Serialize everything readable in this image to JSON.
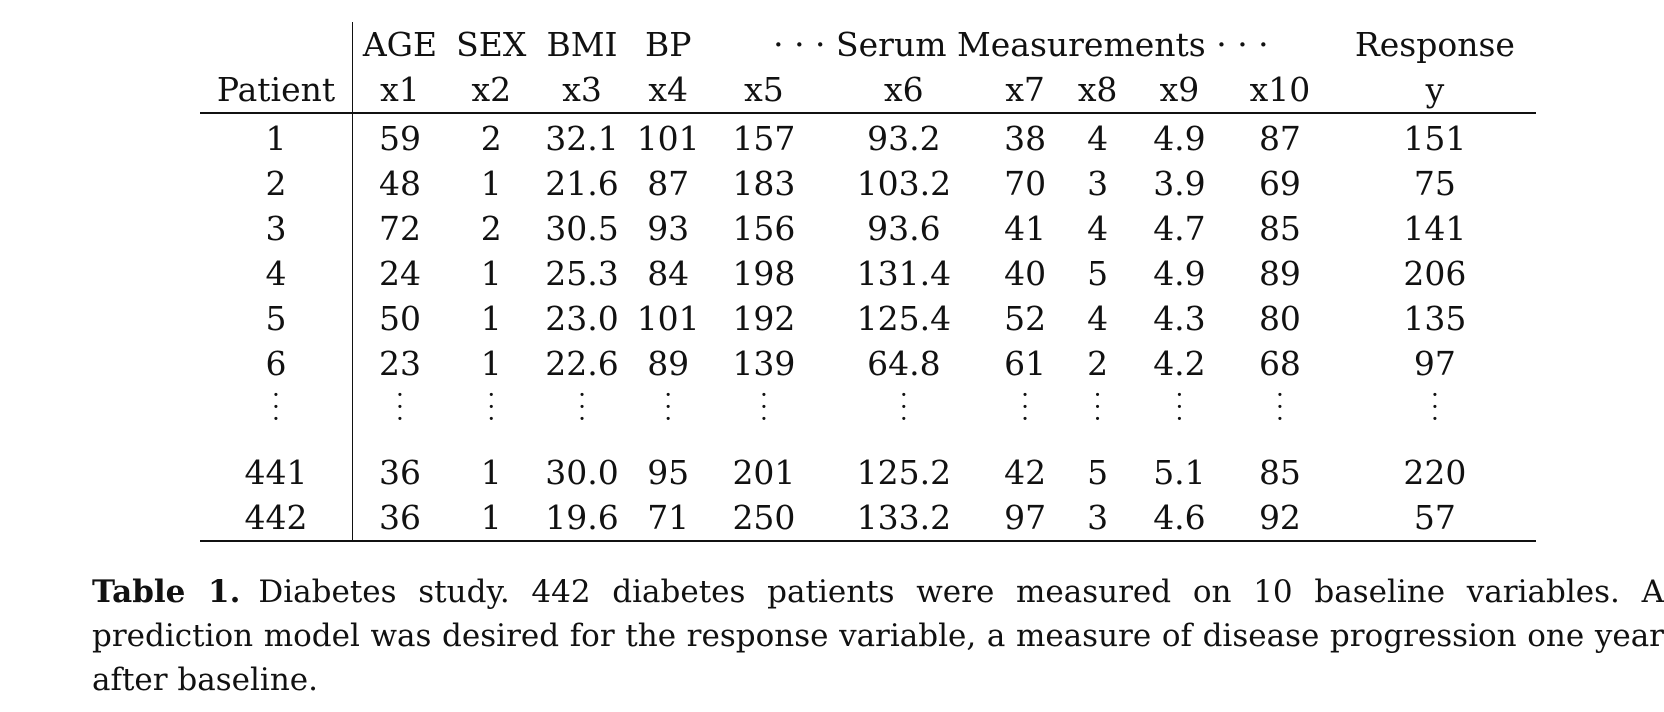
{
  "table": {
    "group_headers": {
      "age": "AGE",
      "sex": "SEX",
      "bmi": "BMI",
      "bp": "BP",
      "serum": "· · · Serum Measurements · · ·",
      "response": "Response"
    },
    "column_headers": [
      "Patient",
      "x1",
      "x2",
      "x3",
      "x4",
      "x5",
      "x6",
      "x7",
      "x8",
      "x9",
      "x10",
      "y"
    ],
    "rows": [
      [
        "1",
        "59",
        "2",
        "32.1",
        "101",
        "157",
        "93.2",
        "38",
        "4",
        "4.9",
        "87",
        "151"
      ],
      [
        "2",
        "48",
        "1",
        "21.6",
        "87",
        "183",
        "103.2",
        "70",
        "3",
        "3.9",
        "69",
        "75"
      ],
      [
        "3",
        "72",
        "2",
        "30.5",
        "93",
        "156",
        "93.6",
        "41",
        "4",
        "4.7",
        "85",
        "141"
      ],
      [
        "4",
        "24",
        "1",
        "25.3",
        "84",
        "198",
        "131.4",
        "40",
        "5",
        "4.9",
        "89",
        "206"
      ],
      [
        "5",
        "50",
        "1",
        "23.0",
        "101",
        "192",
        "125.4",
        "52",
        "4",
        "4.3",
        "80",
        "135"
      ],
      [
        "6",
        "23",
        "1",
        "22.6",
        "89",
        "139",
        "64.8",
        "61",
        "2",
        "4.2",
        "68",
        "97"
      ]
    ],
    "tail_rows": [
      [
        "441",
        "36",
        "1",
        "30.0",
        "95",
        "201",
        "125.2",
        "42",
        "5",
        "5.1",
        "85",
        "220"
      ],
      [
        "442",
        "36",
        "1",
        "19.6",
        "71",
        "250",
        "133.2",
        "97",
        "3",
        "4.6",
        "92",
        "57"
      ]
    ]
  },
  "caption": {
    "label": "Table 1.",
    "text": "Diabetes study. 442 diabetes patients were measured on 10 baseline variables. A prediction model was desired for the response variable, a measure of disease progression one year after baseline."
  }
}
